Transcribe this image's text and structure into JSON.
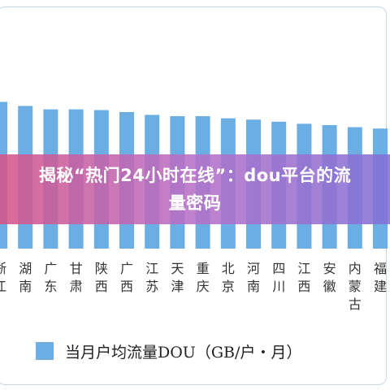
{
  "banner": {
    "title": "揭秘“热门24小时在线”：dou平台的流量密码"
  },
  "chart_data": {
    "type": "bar",
    "categories": [
      "浙江",
      "湖南",
      "广东",
      "甘肃",
      "陕西",
      "广西",
      "江苏",
      "天津",
      "重庆",
      "北京",
      "河南",
      "四川",
      "江西",
      "安徽",
      "内蒙古",
      "福建"
    ],
    "series": [
      {
        "name": "当月户均流量DOU（GB/户・月）",
        "color": "#6aaee4",
        "values": [
          21.5,
          20.9,
          20.4,
          20.4,
          20.3,
          20.0,
          19.6,
          19.4,
          19.4,
          19.1,
          18.9,
          18.6,
          18.3,
          18.1,
          17.8,
          17.6
        ]
      }
    ],
    "ylim": [
      0,
      25
    ],
    "grid": false,
    "legend_position": "bottom"
  }
}
